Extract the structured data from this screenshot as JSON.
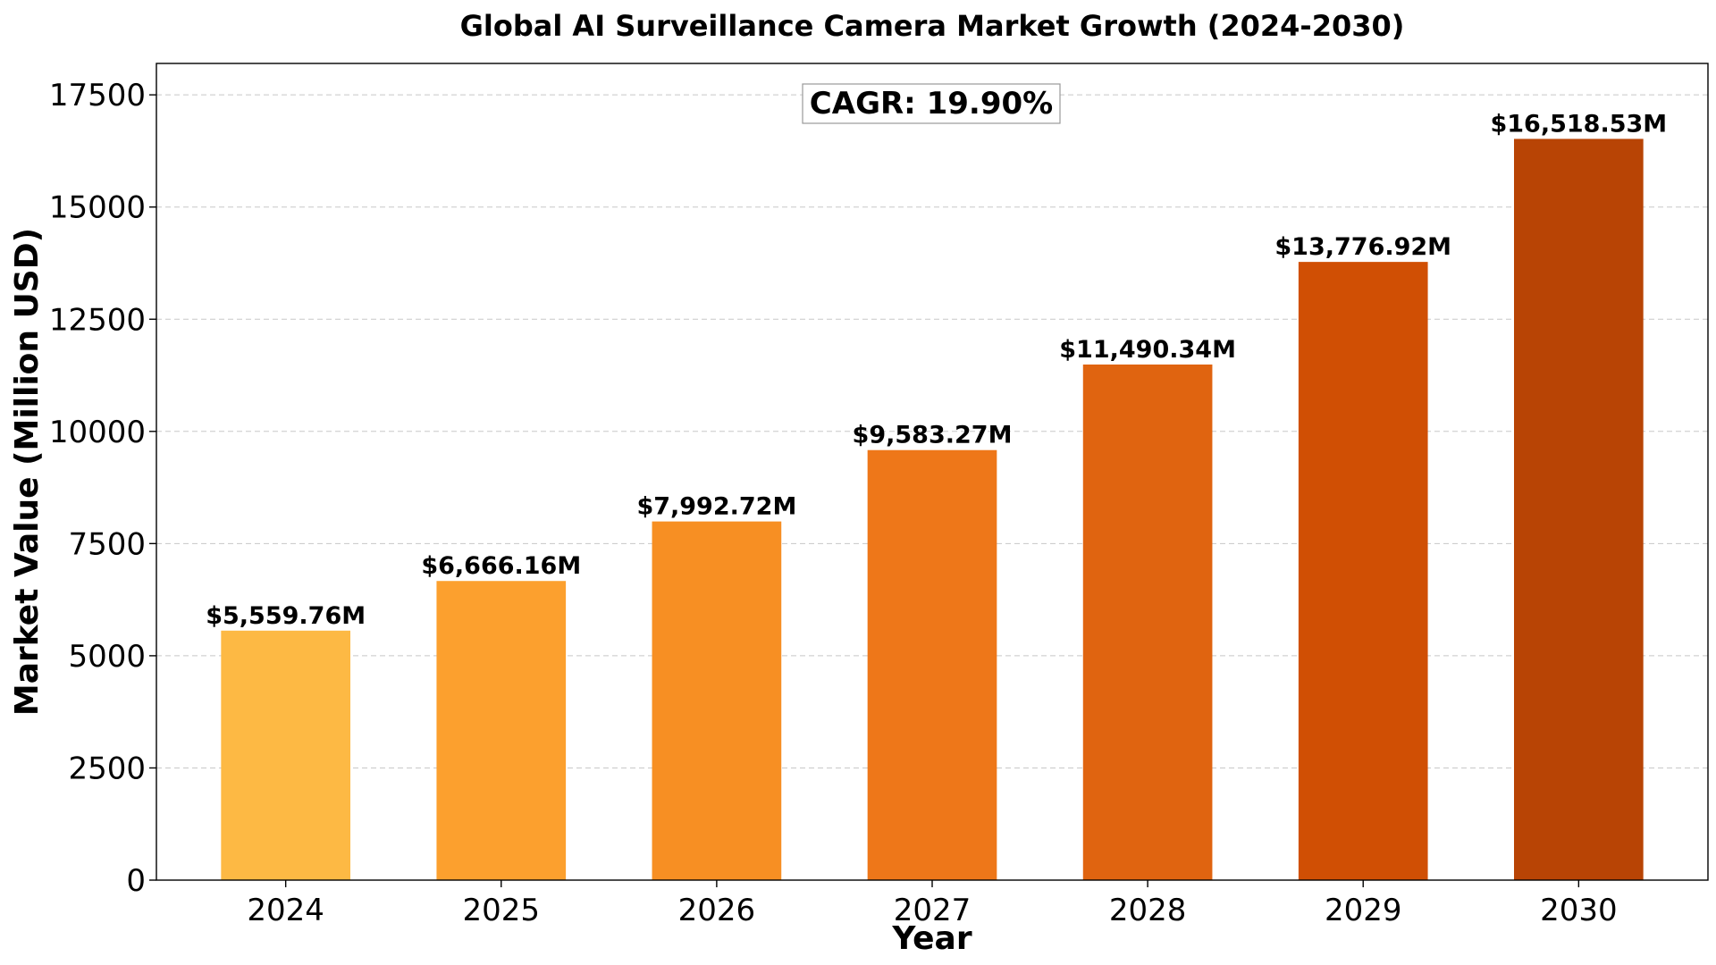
{
  "chart_data": {
    "type": "bar",
    "title": "Global AI Surveillance Camera Market Growth (2024-2030)",
    "xlabel": "Year",
    "ylabel": "Market Value (Million USD)",
    "categories": [
      "2024",
      "2025",
      "2026",
      "2027",
      "2028",
      "2029",
      "2030"
    ],
    "values": [
      5559.76,
      6666.16,
      7992.72,
      9583.27,
      11490.34,
      13776.92,
      16518.53
    ],
    "value_labels": [
      "$5,559.76M",
      "$6,666.16M",
      "$7,992.72M",
      "$9,583.27M",
      "$11,490.34M",
      "$13,776.92M",
      "$16,518.53M"
    ],
    "colors": [
      "#fdb944",
      "#fca02e",
      "#f78f23",
      "#ee7719",
      "#e06410",
      "#d04f04",
      "#b84405"
    ],
    "ylim": [
      0,
      18200
    ],
    "yticks": [
      0,
      2500,
      5000,
      7500,
      10000,
      12500,
      15000,
      17500
    ],
    "ytick_labels": [
      "0",
      "2500",
      "5000",
      "7500",
      "10000",
      "12500",
      "15000",
      "17500"
    ],
    "grid": true,
    "annotation": "CAGR: 19.90%"
  }
}
